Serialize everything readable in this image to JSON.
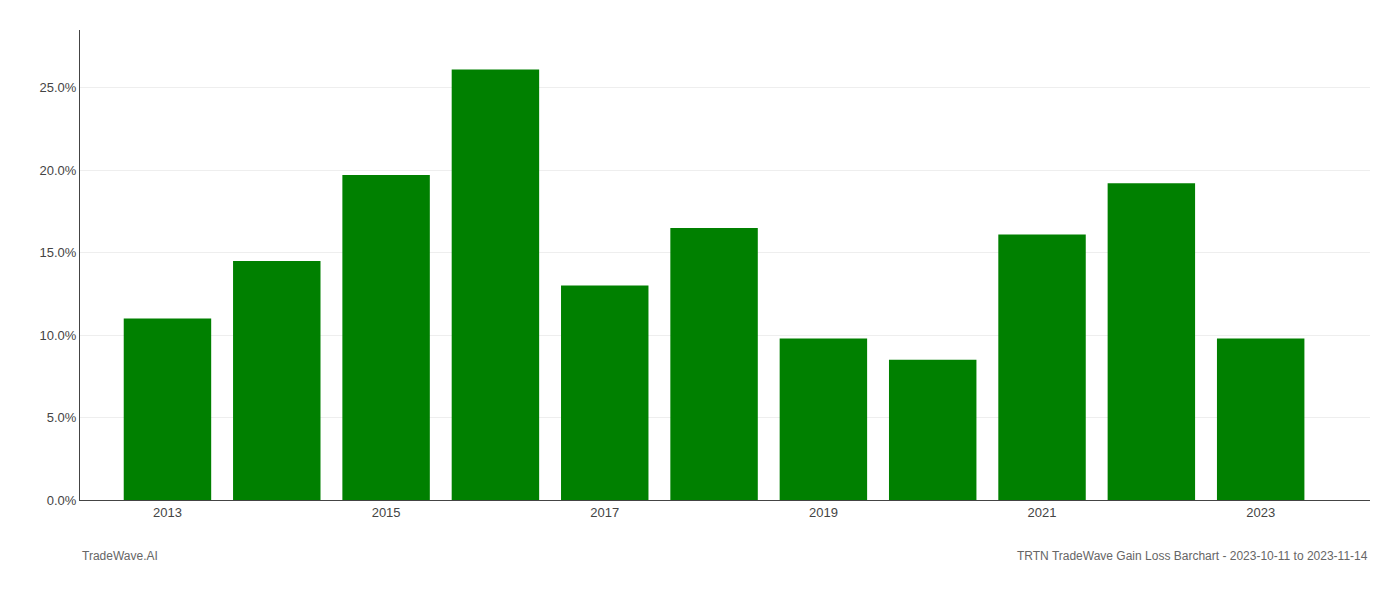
{
  "chart_data": {
    "type": "bar",
    "x": [
      2013,
      2014,
      2015,
      2016,
      2017,
      2018,
      2019,
      2020,
      2021,
      2022,
      2023
    ],
    "values": [
      0.11,
      0.145,
      0.197,
      0.261,
      0.13,
      0.165,
      0.098,
      0.085,
      0.161,
      0.192,
      0.098
    ],
    "color": "#008000",
    "xlim": [
      2012.2,
      2024.0
    ],
    "xticks": [
      2013,
      2015,
      2017,
      2019,
      2021,
      2023
    ],
    "ylim": [
      0,
      0.285
    ],
    "yticks": [
      {
        "value": 0.0,
        "label": "0.0%"
      },
      {
        "value": 0.05,
        "label": "5.0%"
      },
      {
        "value": 0.1,
        "label": "10.0%"
      },
      {
        "value": 0.15,
        "label": "15.0%"
      },
      {
        "value": 0.2,
        "label": "20.0%"
      },
      {
        "value": 0.25,
        "label": "25.0%"
      }
    ],
    "grid": true,
    "annotations": [
      "TradeWave.AI",
      "TRTN TradeWave Gain Loss Barchart - 2023-10-11 to 2023-11-14"
    ]
  }
}
